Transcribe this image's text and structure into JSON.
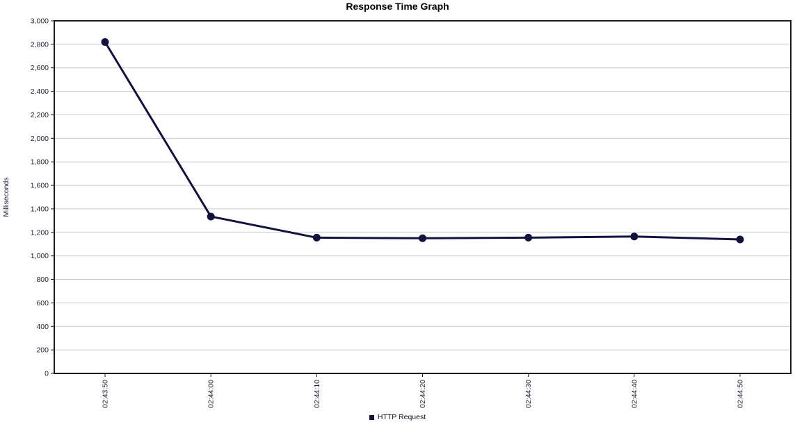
{
  "title": "Response Time Graph",
  "y_axis": {
    "label": "Milliseconds",
    "min": 0,
    "max": 3000,
    "tick_step": 200
  },
  "legend": {
    "label": "HTTP Request"
  },
  "colors": {
    "series": "#12123f",
    "grid": "#c9c9c9",
    "border": "#1a1a1a",
    "tick_text": "#1f1f33",
    "title_text": "#000000"
  },
  "chart_data": {
    "type": "line",
    "title": "Response Time Graph",
    "xlabel": "",
    "ylabel": "Milliseconds",
    "x": [
      "02:43:50",
      "02:44:00",
      "02:44:10",
      "02:44:20",
      "02:44:30",
      "02:44:40",
      "02:44:50"
    ],
    "series": [
      {
        "name": "HTTP Request",
        "color": "#12123f",
        "values": [
          2820,
          1335,
          1155,
          1150,
          1155,
          1165,
          1140
        ]
      }
    ],
    "ylim": [
      0,
      3000
    ],
    "ytick_step": 200,
    "grid": "horizontal-only",
    "legend_position": "bottom-center",
    "marker": "circle"
  }
}
